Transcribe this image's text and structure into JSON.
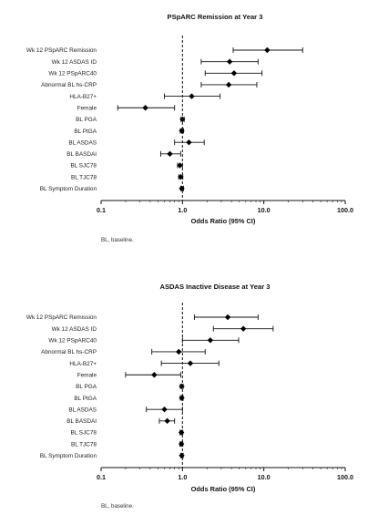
{
  "chart_data": [
    {
      "type": "scatter",
      "subtype": "forest-plot",
      "title": "PSpARC Remission at Year 3",
      "xlabel": "Odds Ratio (95% CI)",
      "xscale": "log",
      "xlim": [
        0.1,
        100
      ],
      "xticks": [
        "0.1",
        "1.0",
        "10.0",
        "100.0"
      ],
      "reference_line": 1,
      "footnote": "BL, baseline.",
      "categories": [
        "Wk 12 PSpARC Remission",
        "Wk 12 ASDAS ID",
        "Wk 12 PSpARC40",
        "Abnormal BL hs-CRP",
        "HLA-B27+",
        "Female",
        "BL PGA",
        "BL PtGA",
        "BL ASDAS",
        "BL BASDAI",
        "BL SJC78",
        "BL TJC78",
        "BL Symptom Duration"
      ],
      "or": [
        11.0,
        3.8,
        4.3,
        3.7,
        1.3,
        0.35,
        1.0,
        0.98,
        1.2,
        0.7,
        0.93,
        0.95,
        0.98
      ],
      "ci_low": [
        4.2,
        1.7,
        1.9,
        1.7,
        0.6,
        0.16,
        0.96,
        0.94,
        0.8,
        0.54,
        0.87,
        0.9,
        0.95
      ],
      "ci_high": [
        30.0,
        8.5,
        9.5,
        8.2,
        2.9,
        0.8,
        1.05,
        1.03,
        1.85,
        0.95,
        1.0,
        1.01,
        1.03
      ]
    },
    {
      "type": "scatter",
      "subtype": "forest-plot",
      "title": "ASDAS Inactive Disease at Year 3",
      "xlabel": "Odds Ratio (95% CI)",
      "xscale": "log",
      "xlim": [
        0.1,
        100
      ],
      "xticks": [
        "0.1",
        "1.0",
        "10.0",
        "100.0"
      ],
      "reference_line": 1,
      "footnote": "BL, baseline.",
      "categories": [
        "Wk 12 PSpARC Remission",
        "Wk 12 ASDAS ID",
        "Wk 12 PSpARC40",
        "Abnormal BL hs-CRP",
        "HLA-B27+",
        "Female",
        "BL PGA",
        "BL PtGA",
        "BL ASDAS",
        "BL BASDAI",
        "BL SJC78",
        "BL TJC78",
        "BL Symptom Duration"
      ],
      "or": [
        3.6,
        5.6,
        2.2,
        0.9,
        1.25,
        0.45,
        0.98,
        0.98,
        0.6,
        0.65,
        0.97,
        0.97,
        0.98
      ],
      "ci_low": [
        1.4,
        2.4,
        1.0,
        0.42,
        0.55,
        0.2,
        0.94,
        0.94,
        0.36,
        0.52,
        0.93,
        0.93,
        0.95
      ],
      "ci_high": [
        8.5,
        13.0,
        4.9,
        1.9,
        2.8,
        0.95,
        1.02,
        1.02,
        1.0,
        0.8,
        1.01,
        1.01,
        1.02
      ]
    }
  ],
  "colors": {
    "ink": "#111111",
    "marker": "#000000"
  }
}
